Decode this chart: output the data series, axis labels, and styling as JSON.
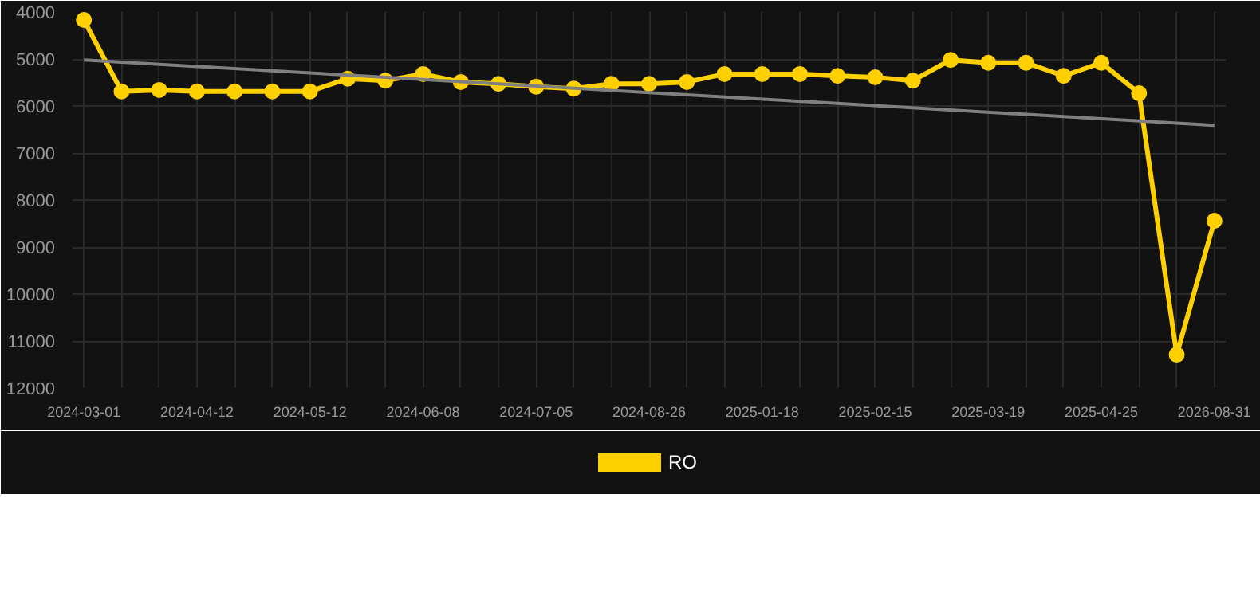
{
  "chart_data": {
    "type": "line",
    "categories": [
      "2024-03-01",
      null,
      null,
      "2024-04-12",
      null,
      null,
      "2024-05-12",
      null,
      null,
      "2024-06-08",
      null,
      null,
      "2024-07-05",
      null,
      null,
      "2024-08-26",
      null,
      null,
      "2025-01-18",
      null,
      null,
      "2025-02-15",
      null,
      null,
      "2025-03-19",
      null,
      null,
      "2025-04-25",
      null,
      null,
      "2026-08-31"
    ],
    "series": [
      {
        "name": "RO",
        "color": "#ffd000",
        "marker": "circle",
        "values": [
          4170,
          5690,
          5660,
          5690,
          5690,
          5690,
          5690,
          5420,
          5460,
          5320,
          5490,
          5530,
          5590,
          5630,
          5530,
          5530,
          5490,
          5320,
          5320,
          5320,
          5360,
          5390,
          5460,
          5020,
          5080,
          5080,
          5360,
          5080,
          5730,
          11290,
          8440
        ]
      },
      {
        "type": "line",
        "color": "#808080",
        "marker": "none",
        "values": [
          5020,
          null,
          null,
          null,
          null,
          null,
          null,
          null,
          null,
          null,
          null,
          null,
          null,
          null,
          null,
          null,
          null,
          null,
          null,
          null,
          null,
          null,
          null,
          null,
          null,
          null,
          null,
          null,
          null,
          null,
          6410
        ]
      }
    ],
    "ylim": [
      12000,
      4000
    ],
    "yticks": [
      4000,
      5000,
      6000,
      7000,
      8000,
      9000,
      10000,
      11000,
      12000
    ],
    "grid": true,
    "legend": "bottom"
  }
}
